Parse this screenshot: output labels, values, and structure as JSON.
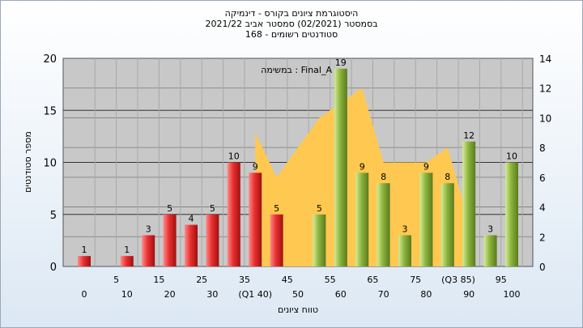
{
  "header": {
    "line1": "היסטוגרמת ציונים בקורס - דינמיקה",
    "line2": "בסמסטר  (02/2021)  סמסטר אביב 2021/22",
    "line3": "סטודנטים רשומים - 168"
  },
  "chart_data": {
    "type": "bar",
    "xlabel": "טווח ציונים",
    "ylabel": "מספר סטודנטים",
    "ylim": [
      0,
      20
    ],
    "y2lim": [
      0,
      14
    ],
    "yticks": [
      0,
      5,
      10,
      15,
      20
    ],
    "y2ticks": [
      0,
      2,
      4,
      6,
      8,
      10,
      12,
      14
    ],
    "annotation": "במשימה : Final_A",
    "categories": [
      "0",
      "5",
      "10",
      "15",
      "20",
      "25",
      "30",
      "35",
      "40",
      "45",
      "50",
      "55",
      "60",
      "65",
      "70",
      "75",
      "80",
      "85",
      "90",
      "95",
      "100"
    ],
    "tick_labels_row1": [
      "",
      "5",
      "",
      "15",
      "",
      "25",
      "",
      "35",
      "",
      "45",
      "",
      "55",
      "",
      "65",
      "",
      "75",
      "",
      "(Q3 85)",
      "",
      "95",
      ""
    ],
    "tick_labels_row2": [
      "0",
      "",
      "10",
      "",
      "20",
      "",
      "30",
      "",
      "(Q1 40)",
      "",
      "50",
      "",
      "60",
      "",
      "70",
      "",
      "80",
      "",
      "90",
      "",
      "100"
    ],
    "values": [
      1,
      0,
      1,
      3,
      5,
      4,
      5,
      10,
      9,
      5,
      0,
      5,
      19,
      9,
      8,
      3,
      9,
      8,
      12,
      3,
      10
    ],
    "bar_colors": [
      "red",
      "none",
      "red",
      "red",
      "red",
      "red",
      "red",
      "red",
      "red",
      "red",
      "none",
      "green",
      "green",
      "green",
      "green",
      "green",
      "green",
      "green",
      "green",
      "green",
      "green"
    ],
    "area_values_y2": [
      null,
      null,
      null,
      null,
      null,
      null,
      null,
      null,
      9,
      6,
      8,
      10,
      11,
      12,
      7,
      7,
      7,
      8,
      3,
      null,
      null
    ],
    "colors": {
      "fail": "#e83030",
      "pass": "#8cb43c",
      "area": "#ffc850",
      "plot_bg": "#c8c8c8"
    }
  }
}
